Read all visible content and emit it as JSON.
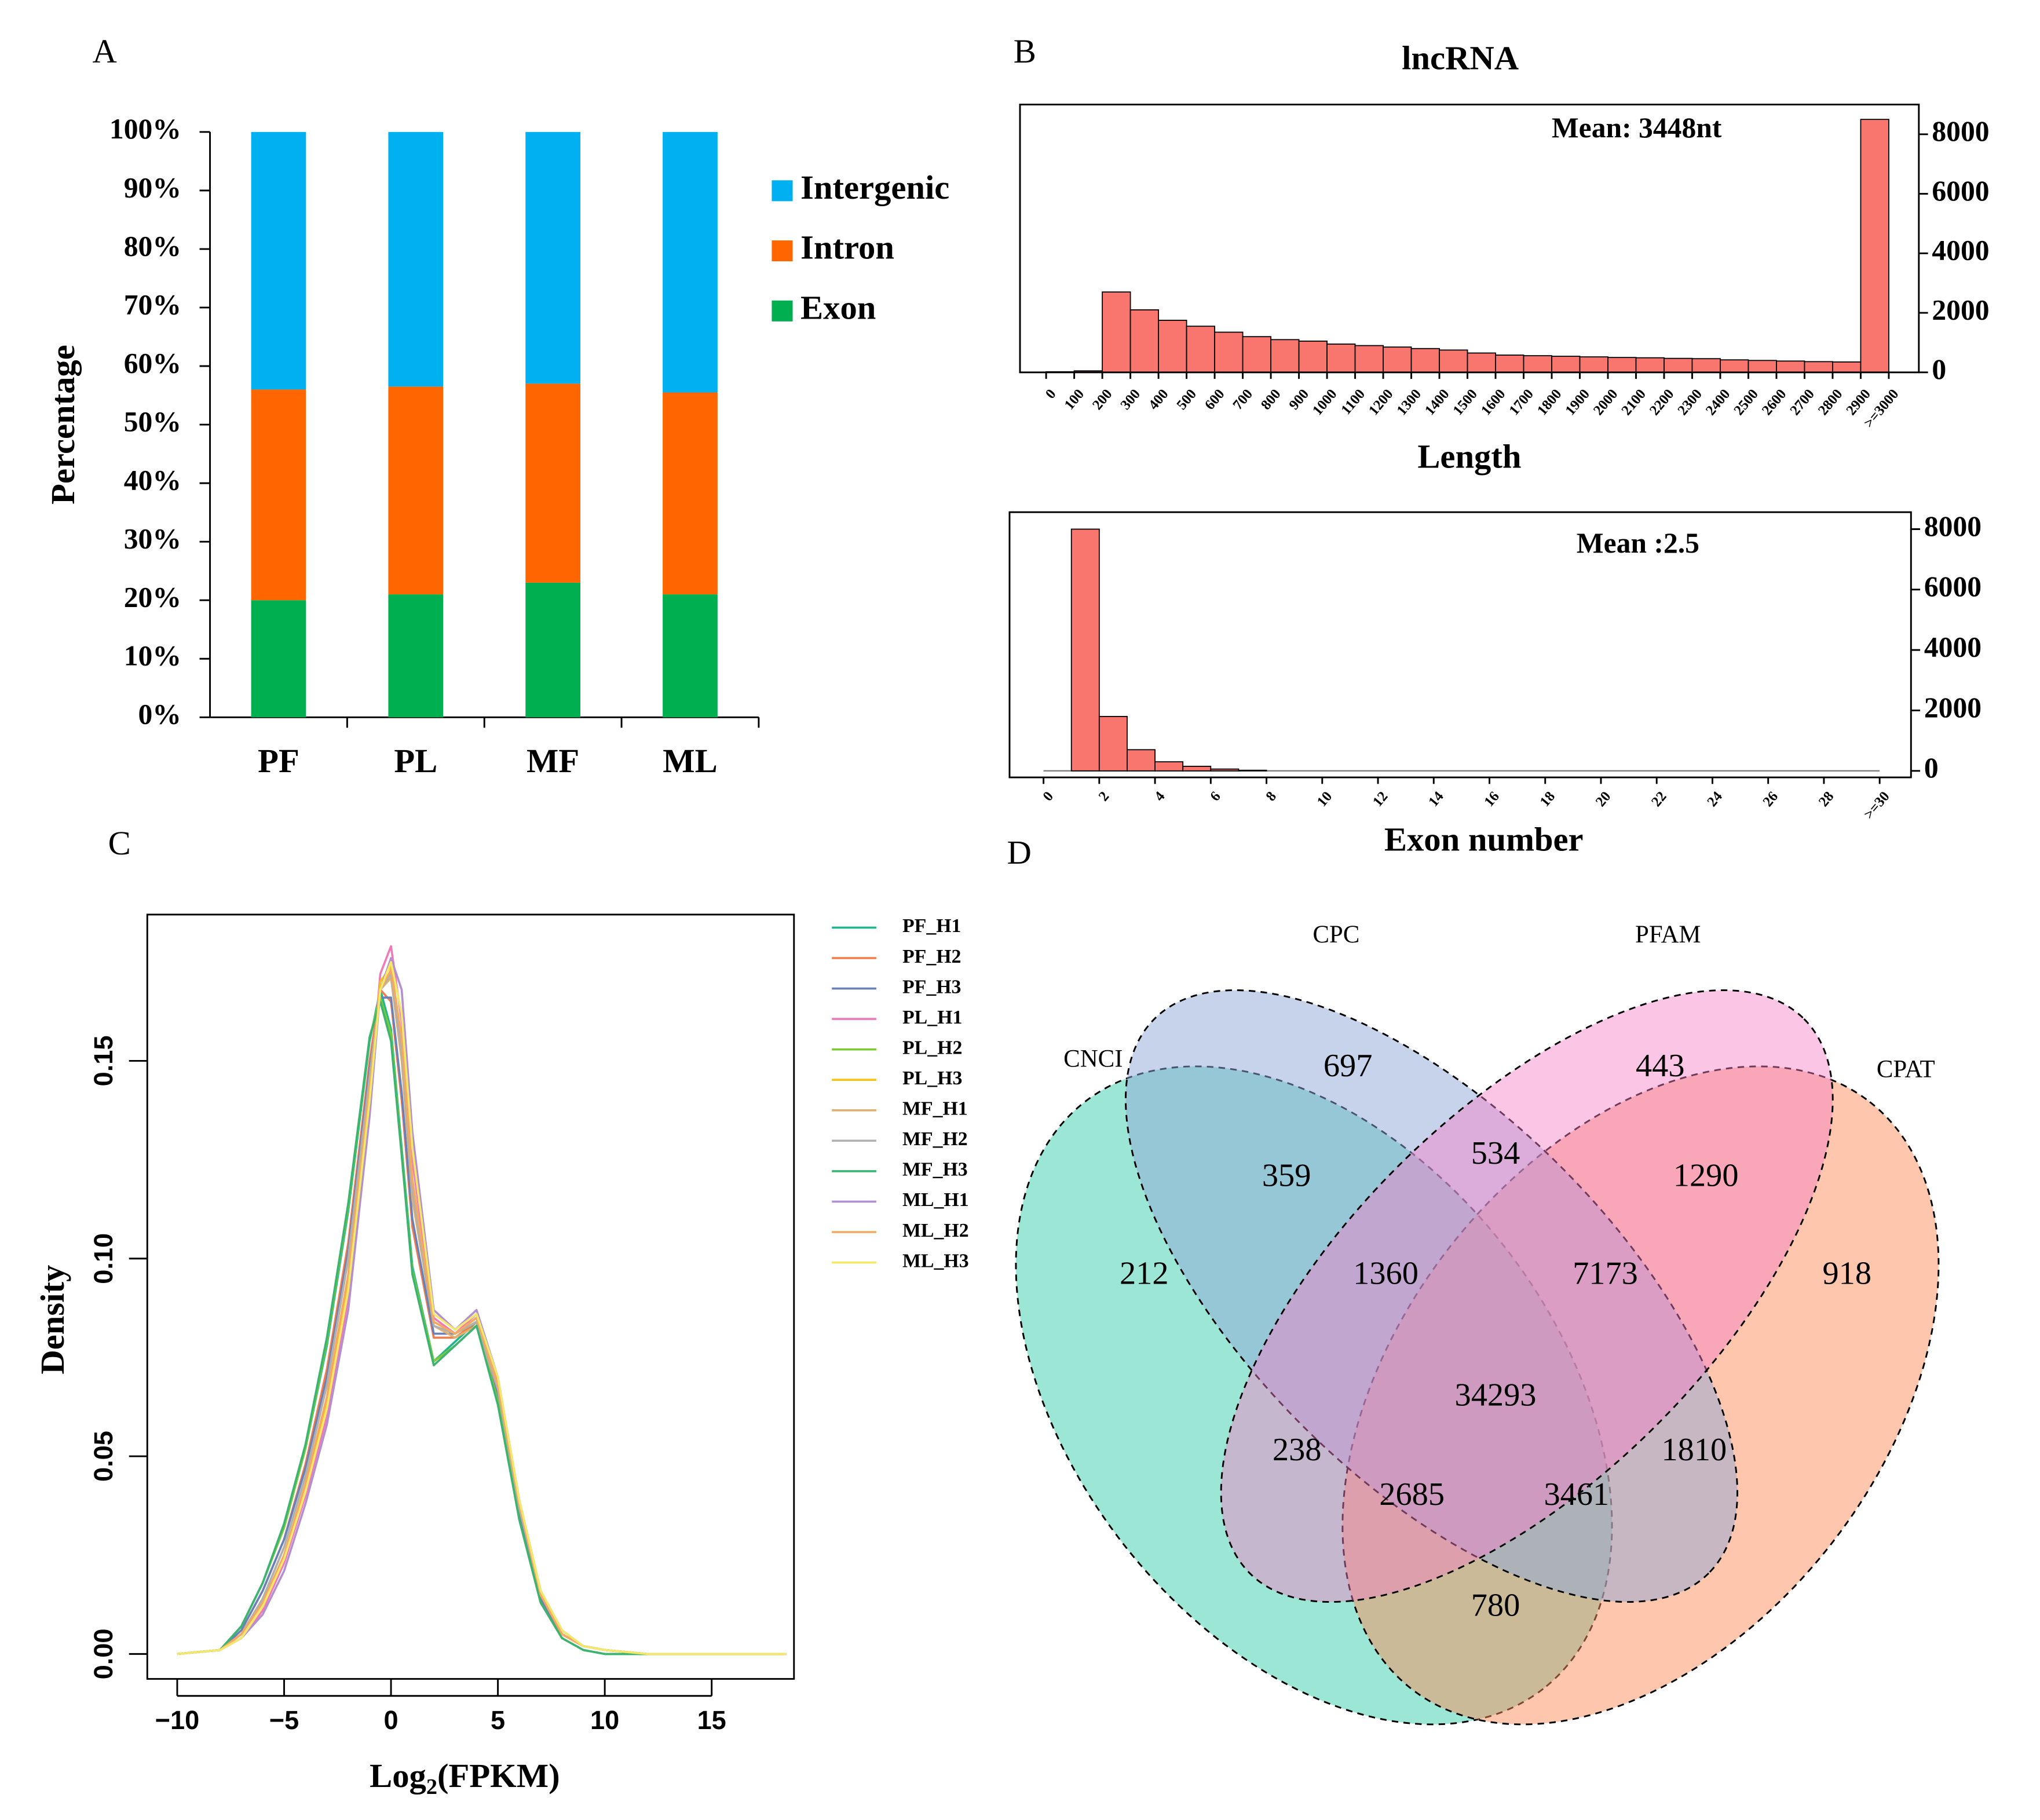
{
  "chart_data": [
    {
      "type": "stacked_bar",
      "panel": "A",
      "ylabel": "Percentage",
      "categories": [
        "PF",
        "PL",
        "MF",
        "ML"
      ],
      "series": [
        {
          "name": "Exon",
          "color": "#00b050",
          "values": [
            20,
            21,
            23,
            21
          ]
        },
        {
          "name": "Intron",
          "color": "#ff6600",
          "values": [
            36,
            35.5,
            34,
            34.5
          ]
        },
        {
          "name": "Intergenic",
          "color": "#00b0f0",
          "values": [
            44,
            43.5,
            43,
            44.5
          ]
        }
      ],
      "ylim": [
        0,
        100
      ],
      "yticks": [
        {
          "value": 0,
          "label": "0%"
        },
        {
          "value": 10,
          "label": "10%"
        },
        {
          "value": 20,
          "label": "20%"
        },
        {
          "value": 30,
          "label": "30%"
        },
        {
          "value": 40,
          "label": "40%"
        },
        {
          "value": 50,
          "label": "50%"
        },
        {
          "value": 60,
          "label": "60%"
        },
        {
          "value": 70,
          "label": "70%"
        },
        {
          "value": 80,
          "label": "80%"
        },
        {
          "value": 90,
          "label": "90%"
        },
        {
          "value": 100,
          "label": "100%"
        }
      ]
    },
    {
      "type": "histogram",
      "panel": "B",
      "title": "lncRNA",
      "xlabel": "Length",
      "annotation": "Mean: 3448nt",
      "color": "#f8766d",
      "bins": [
        0,
        100,
        200,
        300,
        400,
        500,
        600,
        700,
        800,
        900,
        1000,
        1100,
        1200,
        1300,
        1400,
        1500,
        1600,
        1700,
        1800,
        1900,
        2000,
        2100,
        2200,
        2300,
        2400,
        2500,
        2600,
        2700,
        2800,
        2900,
        3000
      ],
      "values": [
        20,
        50,
        2700,
        2100,
        1750,
        1550,
        1350,
        1200,
        1100,
        1050,
        950,
        900,
        850,
        800,
        750,
        650,
        580,
        560,
        540,
        520,
        500,
        490,
        470,
        460,
        420,
        400,
        380,
        360,
        350,
        8500
      ],
      "xlim": [
        0,
        3000
      ],
      "xticks": [
        0,
        100,
        200,
        300,
        400,
        500,
        600,
        700,
        800,
        900,
        1000,
        1100,
        1200,
        1300,
        1400,
        1500,
        1600,
        1700,
        1800,
        1900,
        2000,
        2100,
        2200,
        2300,
        2400,
        2500,
        2600,
        2700,
        2800,
        2900,
        {
          "value": 3000,
          "label": ">=3000"
        }
      ],
      "ylim": [
        0,
        9000
      ],
      "yticks": [
        0,
        2000,
        4000,
        6000,
        8000
      ]
    },
    {
      "type": "histogram",
      "xlabel": "Exon number",
      "annotation": "Mean :2.5",
      "color": "#f8766d",
      "bins": [
        0,
        1,
        2,
        3,
        4,
        5,
        6,
        7,
        8,
        9,
        10,
        11,
        12,
        13,
        14,
        15,
        16,
        17,
        18,
        19,
        20,
        21,
        22,
        23,
        24,
        25,
        26,
        27,
        28,
        29,
        30
      ],
      "values": [
        0,
        8000,
        1800,
        700,
        300,
        150,
        60,
        20,
        0,
        0,
        0,
        0,
        0,
        0,
        0,
        0,
        0,
        0,
        0,
        0,
        0,
        0,
        0,
        0,
        0,
        0,
        0,
        0,
        0,
        0
      ],
      "xlim": [
        0,
        30
      ],
      "xticks": [
        0,
        2,
        4,
        6,
        8,
        10,
        12,
        14,
        16,
        18,
        20,
        22,
        24,
        26,
        28,
        {
          "value": 30,
          "label": ">=30"
        }
      ],
      "ylim": [
        -216,
        8562
      ],
      "yticks": [
        0,
        2000,
        4000,
        6000,
        8000
      ]
    },
    {
      "type": "line",
      "panel": "C",
      "ylabel": "Density",
      "xlabel": {
        "base": "Log",
        "sub": "2",
        "rest": "(FPKM)"
      },
      "x": [
        -10,
        -8,
        -7,
        -6,
        -5,
        -4,
        -3,
        -2,
        -1,
        -0.5,
        0,
        0.5,
        1,
        2,
        3,
        4,
        5,
        6,
        7,
        8,
        9,
        10,
        12,
        15,
        18.5
      ],
      "series": [
        {
          "name": "PF_H1",
          "color": "#1fb58f",
          "values": [
            0,
            0.001,
            0.007,
            0.018,
            0.032,
            0.052,
            0.078,
            0.112,
            0.155,
            0.168,
            0.158,
            0.128,
            0.098,
            0.074,
            0.079,
            0.084,
            0.064,
            0.034,
            0.013,
            0.004,
            0.001,
            0,
            0,
            0,
            0
          ]
        },
        {
          "name": "PF_H2",
          "color": "#f47b4a",
          "values": [
            0,
            0.001,
            0.006,
            0.016,
            0.029,
            0.048,
            0.072,
            0.104,
            0.15,
            0.168,
            0.165,
            0.14,
            0.108,
            0.08,
            0.08,
            0.084,
            0.066,
            0.036,
            0.014,
            0.005,
            0.002,
            0.001,
            0,
            0,
            0
          ]
        },
        {
          "name": "PF_H3",
          "color": "#6a80b9",
          "values": [
            0,
            0.001,
            0.006,
            0.016,
            0.029,
            0.047,
            0.07,
            0.102,
            0.148,
            0.166,
            0.166,
            0.142,
            0.11,
            0.081,
            0.081,
            0.085,
            0.066,
            0.036,
            0.014,
            0.005,
            0.002,
            0.001,
            0,
            0,
            0
          ]
        },
        {
          "name": "PL_H1",
          "color": "#f07ab8",
          "values": [
            0,
            0.001,
            0.004,
            0.011,
            0.023,
            0.04,
            0.06,
            0.09,
            0.14,
            0.172,
            0.179,
            0.16,
            0.125,
            0.085,
            0.081,
            0.086,
            0.069,
            0.038,
            0.015,
            0.005,
            0.002,
            0.001,
            0,
            0,
            0
          ]
        },
        {
          "name": "PL_H2",
          "color": "#7ec93a",
          "values": [
            0,
            0.001,
            0.007,
            0.018,
            0.032,
            0.052,
            0.079,
            0.113,
            0.156,
            0.166,
            0.157,
            0.127,
            0.097,
            0.074,
            0.078,
            0.083,
            0.064,
            0.034,
            0.013,
            0.004,
            0.001,
            0,
            0,
            0,
            0
          ]
        },
        {
          "name": "PL_H3",
          "color": "#f5c21a",
          "values": [
            0,
            0.001,
            0.005,
            0.013,
            0.025,
            0.043,
            0.064,
            0.095,
            0.142,
            0.17,
            0.174,
            0.155,
            0.12,
            0.084,
            0.081,
            0.084,
            0.068,
            0.038,
            0.015,
            0.005,
            0.002,
            0.001,
            0,
            0,
            0
          ]
        },
        {
          "name": "MF_H1",
          "color": "#e0b070",
          "values": [
            0,
            0.001,
            0.005,
            0.014,
            0.027,
            0.045,
            0.068,
            0.1,
            0.146,
            0.168,
            0.171,
            0.15,
            0.115,
            0.083,
            0.08,
            0.083,
            0.067,
            0.037,
            0.015,
            0.005,
            0.002,
            0.001,
            0,
            0,
            0
          ]
        },
        {
          "name": "MF_H2",
          "color": "#b0b0b0",
          "values": [
            0,
            0.001,
            0.005,
            0.014,
            0.027,
            0.045,
            0.068,
            0.1,
            0.146,
            0.168,
            0.172,
            0.152,
            0.117,
            0.083,
            0.081,
            0.084,
            0.067,
            0.037,
            0.015,
            0.005,
            0.002,
            0.001,
            0,
            0,
            0
          ]
        },
        {
          "name": "MF_H3",
          "color": "#3cb371",
          "values": [
            0,
            0.001,
            0.007,
            0.018,
            0.033,
            0.053,
            0.08,
            0.114,
            0.156,
            0.165,
            0.155,
            0.126,
            0.096,
            0.073,
            0.078,
            0.083,
            0.063,
            0.034,
            0.013,
            0.004,
            0.001,
            0,
            0,
            0,
            0
          ]
        },
        {
          "name": "ML_H1",
          "color": "#b48fd0",
          "values": [
            0,
            0.001,
            0.004,
            0.01,
            0.021,
            0.038,
            0.058,
            0.087,
            0.136,
            0.168,
            0.176,
            0.168,
            0.132,
            0.087,
            0.082,
            0.087,
            0.07,
            0.039,
            0.016,
            0.006,
            0.002,
            0.001,
            0,
            0,
            0
          ]
        },
        {
          "name": "ML_H2",
          "color": "#f5a860",
          "values": [
            0,
            0.001,
            0.005,
            0.013,
            0.025,
            0.043,
            0.065,
            0.096,
            0.143,
            0.168,
            0.173,
            0.156,
            0.12,
            0.084,
            0.081,
            0.085,
            0.068,
            0.038,
            0.015,
            0.005,
            0.002,
            0.001,
            0,
            0,
            0
          ]
        },
        {
          "name": "ML_H3",
          "color": "#f2e86a",
          "values": [
            0,
            0.001,
            0.004,
            0.012,
            0.024,
            0.041,
            0.062,
            0.092,
            0.14,
            0.168,
            0.175,
            0.162,
            0.128,
            0.086,
            0.082,
            0.086,
            0.07,
            0.039,
            0.016,
            0.006,
            0.002,
            0.001,
            0,
            0,
            0
          ]
        }
      ],
      "xlim": [
        -11.4,
        18.85
      ],
      "xticks": [
        {
          "value": -10,
          "label": "−10"
        },
        {
          "value": -5,
          "label": "−5"
        },
        0,
        5,
        10,
        15
      ],
      "ylim": [
        -0.0063,
        0.187
      ],
      "yticks": [
        {
          "value": 0,
          "label": "0.00"
        },
        {
          "value": 0.05,
          "label": "0.05"
        },
        {
          "value": 0.1,
          "label": "0.10"
        },
        {
          "value": 0.15,
          "label": "0.15"
        }
      ]
    },
    {
      "type": "venn",
      "panel": "D",
      "sets": [
        {
          "name": "CNCI",
          "color": "#22c8a0"
        },
        {
          "name": "CPC",
          "color": "#8fa8d8"
        },
        {
          "name": "PFAM",
          "color": "#f77fc8"
        },
        {
          "name": "CPAT",
          "color": "#fb8e5c"
        }
      ],
      "regions": [
        212,
        697,
        443,
        918,
        359,
        534,
        1290,
        1360,
        7173,
        34293,
        238,
        1810,
        2685,
        3461,
        780
      ]
    }
  ]
}
